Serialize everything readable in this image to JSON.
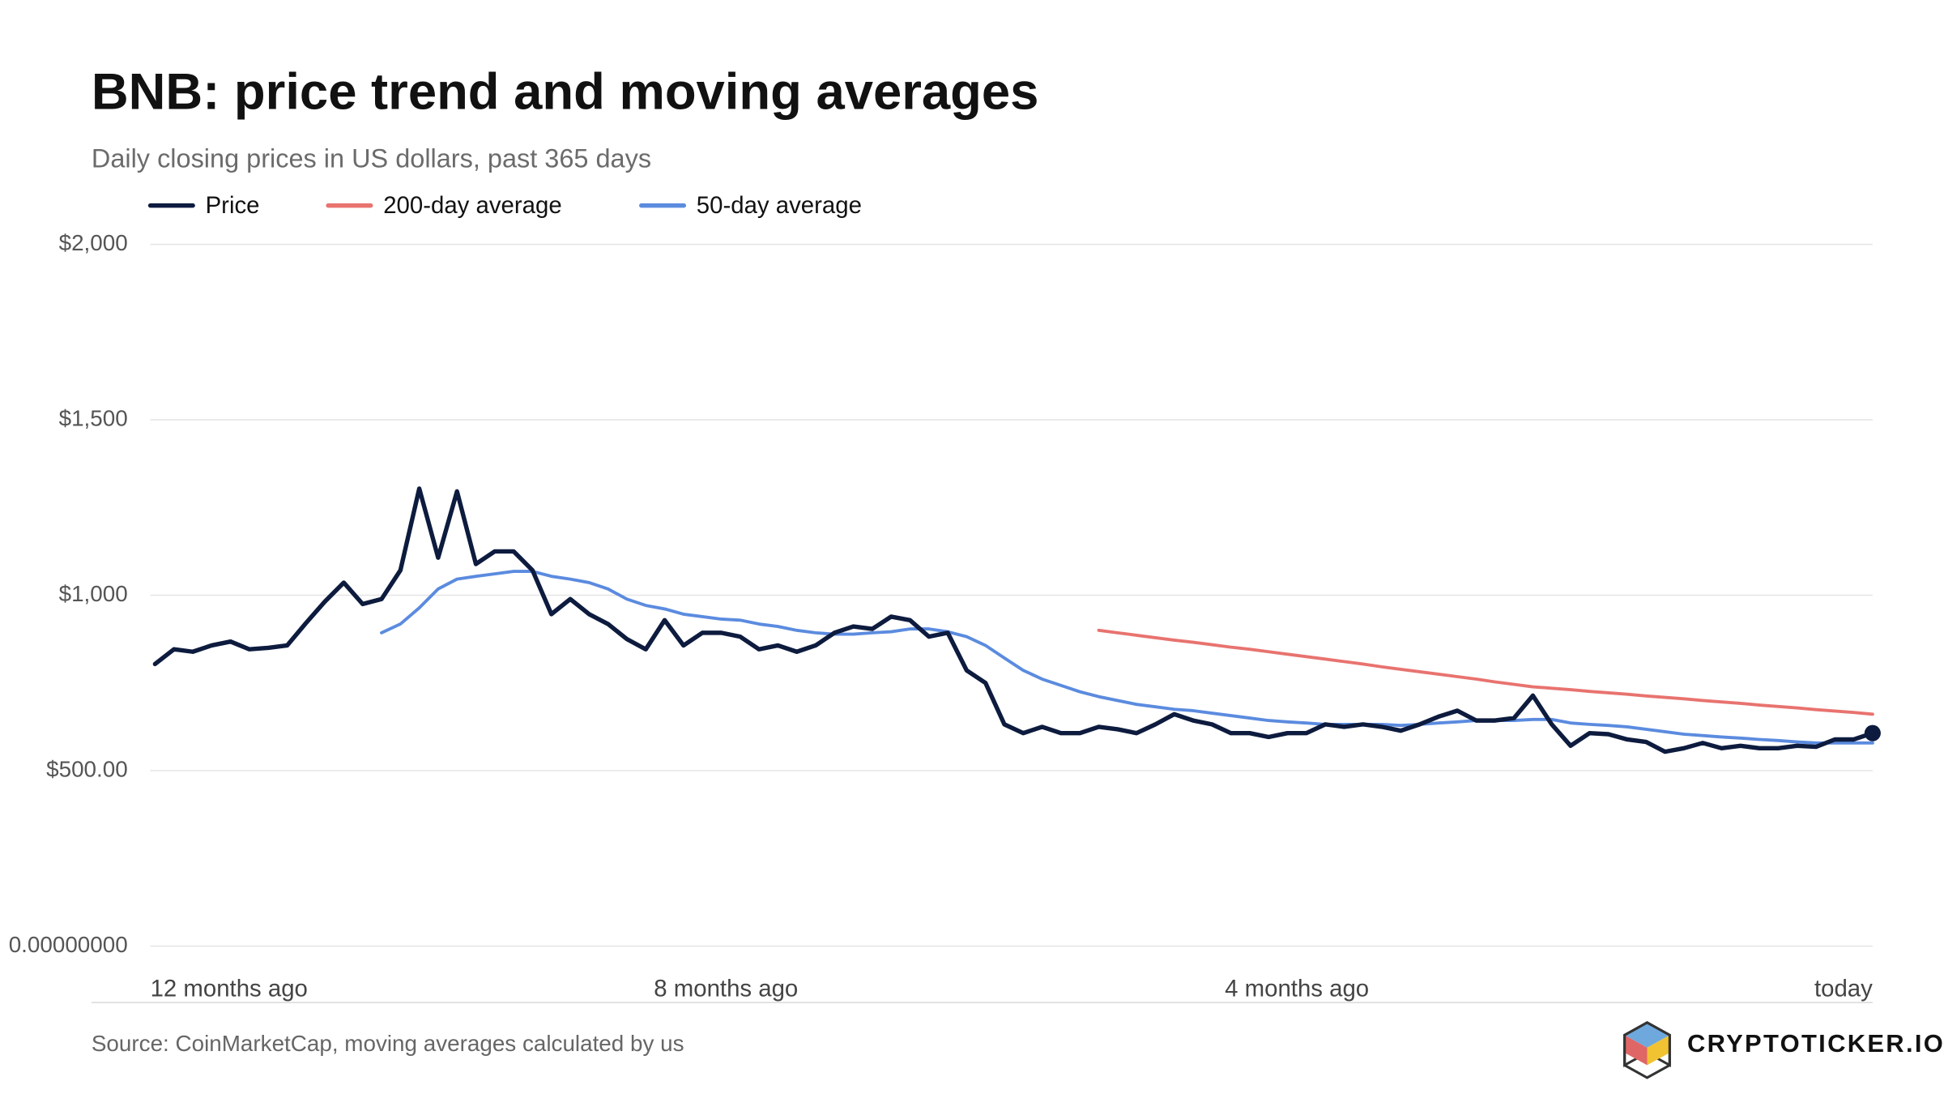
{
  "chart_data": {
    "type": "line",
    "title": "BNB: price trend and moving averages",
    "subtitle": "Daily closing prices in US dollars, past 365 days",
    "source": "Source: CoinMarketCap, moving averages calculated by us",
    "brand": "CRYPTOTICKER.IO",
    "x": [
      -364,
      -360,
      -356,
      -352,
      -348,
      -344,
      -340,
      -336,
      -332,
      -328,
      -324,
      -320,
      -316,
      -312,
      -308,
      -304,
      -300,
      -296,
      -292,
      -288,
      -284,
      -280,
      -276,
      -272,
      -268,
      -264,
      -260,
      -256,
      -252,
      -248,
      -244,
      -240,
      -236,
      -232,
      -228,
      -224,
      -220,
      -216,
      -212,
      -208,
      -204,
      -200,
      -196,
      -192,
      -188,
      -184,
      -180,
      -176,
      -172,
      -168,
      -164,
      -160,
      -156,
      -152,
      -148,
      -144,
      -140,
      -136,
      -132,
      -128,
      -124,
      -120,
      -116,
      -112,
      -108,
      -104,
      -100,
      -96,
      -92,
      -88,
      -84,
      -80,
      -76,
      -72,
      -68,
      -64,
      -60,
      -56,
      -52,
      -48,
      -44,
      -40,
      -36,
      -32,
      -28,
      -24,
      -20,
      -16,
      -12,
      -8,
      -4,
      0
    ],
    "series": [
      {
        "name": "Price",
        "color": "#0d1b3e",
        "values": [
          804,
          846,
          839,
          857,
          868,
          846,
          850,
          857,
          921,
          982,
          1036,
          975,
          989,
          1071,
          1304,
          1107,
          1296,
          1089,
          1125,
          1125,
          1071,
          946,
          989,
          946,
          918,
          875,
          846,
          929,
          857,
          893,
          893,
          882,
          846,
          857,
          839,
          857,
          893,
          911,
          904,
          939,
          929,
          882,
          893,
          786,
          750,
          632,
          607,
          625,
          607,
          607,
          625,
          618,
          607,
          632,
          661,
          643,
          632,
          607,
          607,
          596,
          607,
          607,
          632,
          625,
          632,
          625,
          614,
          632,
          654,
          671,
          643,
          643,
          650,
          714,
          632,
          571,
          607,
          604,
          589,
          582,
          554,
          564,
          579,
          564,
          571,
          564,
          564,
          571,
          568,
          589,
          589,
          607
        ]
      },
      {
        "name": "200-day average",
        "color": "#e8736f",
        "values": [
          null,
          null,
          null,
          null,
          null,
          null,
          null,
          null,
          null,
          null,
          null,
          null,
          null,
          null,
          null,
          null,
          null,
          null,
          null,
          null,
          null,
          null,
          null,
          null,
          null,
          null,
          null,
          null,
          null,
          null,
          null,
          null,
          null,
          null,
          null,
          null,
          null,
          null,
          null,
          null,
          null,
          null,
          null,
          null,
          null,
          null,
          null,
          null,
          null,
          null,
          900,
          893,
          886,
          879,
          872,
          866,
          859,
          852,
          846,
          839,
          832,
          825,
          818,
          811,
          804,
          796,
          789,
          782,
          775,
          768,
          761,
          753,
          746,
          739,
          735,
          731,
          726,
          722,
          718,
          713,
          709,
          705,
          700,
          696,
          692,
          687,
          683,
          679,
          674,
          670,
          666,
          661
        ]
      },
      {
        "name": "50-day average",
        "color": "#5b8bdf",
        "values": [
          null,
          null,
          null,
          null,
          null,
          null,
          null,
          null,
          null,
          null,
          null,
          null,
          893,
          918,
          964,
          1018,
          1046,
          1054,
          1061,
          1068,
          1068,
          1054,
          1046,
          1036,
          1018,
          989,
          971,
          961,
          946,
          939,
          932,
          929,
          918,
          911,
          900,
          893,
          889,
          889,
          893,
          896,
          904,
          904,
          896,
          882,
          857,
          821,
          786,
          761,
          743,
          725,
          711,
          700,
          689,
          682,
          675,
          671,
          664,
          657,
          650,
          643,
          639,
          636,
          632,
          632,
          632,
          632,
          629,
          632,
          636,
          639,
          643,
          643,
          643,
          646,
          646,
          636,
          632,
          629,
          625,
          618,
          611,
          604,
          600,
          596,
          593,
          589,
          586,
          582,
          579,
          579,
          579,
          579
        ]
      }
    ],
    "xlim": [
      -365,
      0
    ],
    "xticks": [
      {
        "value": -365,
        "label": "12 months ago"
      },
      {
        "value": -243,
        "label": "8 months ago"
      },
      {
        "value": -122,
        "label": "4 months ago"
      },
      {
        "value": 0,
        "label": "today"
      }
    ],
    "ylim": [
      0,
      2000
    ],
    "yticks": [
      {
        "value": 0,
        "label": "0.00000000"
      },
      {
        "value": 500,
        "label": "$500.00"
      },
      {
        "value": 1000,
        "label": "$1,000"
      },
      {
        "value": 1500,
        "label": "$1,500"
      },
      {
        "value": 2000,
        "label": "$2,000"
      }
    ],
    "grid": true
  }
}
